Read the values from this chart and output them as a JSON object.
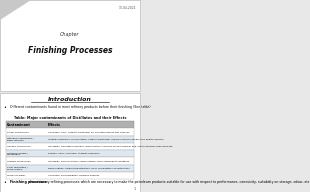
{
  "bg_color": "#e8e8e8",
  "slide1": {
    "bg": "#ffffff",
    "chapter_label": "Chapter",
    "title": "Finishing Processes",
    "date_text": "13-04-2021"
  },
  "slide2": {
    "bg": "#ffffff",
    "section_title": "Introduction",
    "bullet1": "Different contaminants found in most refinery products before their finishing (See table)",
    "table_title": "Table: Major contaminants of Distillates and their Effects",
    "table_headers": [
      "Contaminant",
      "Effects"
    ],
    "table_rows": [
      [
        "Sulfur compounds",
        "Corrosion, odor, catalyst poisoning, air pollution and health hazards"
      ],
      [
        "Nitrogen compounds /\nBasic nitrogen",
        "Stability problems, discoloration, catalyst poisoning, reduces octane number and health hazards"
      ],
      [
        "Oxygen compounds",
        "Instability, peroxide formation, discoloration, reduces octane number and health hazards, gum deposits"
      ],
      [
        "Carbonyl sulfide /\nMercaptans",
        "Toxicity, odor, corrosion, Stability problems"
      ],
      [
        "Olefinic compounds",
        "Instability, gum formation, discoloration, poor response to additives"
      ],
      [
        "Color impurities /\nTrace metals",
        "Discoloration, catalyst deactivation, poor combustion characteristics"
      ],
      [
        "Traces of water",
        "Corrosion, emulsification, freezing hazards"
      ]
    ],
    "bullet2_bold": "Finishing processes:",
    "bullet2_rest": " discretionary refining processes which are necessary to make the petroleum products suitable for use with respect to performance, corrosivity, suitability on storage, odour, etc."
  }
}
